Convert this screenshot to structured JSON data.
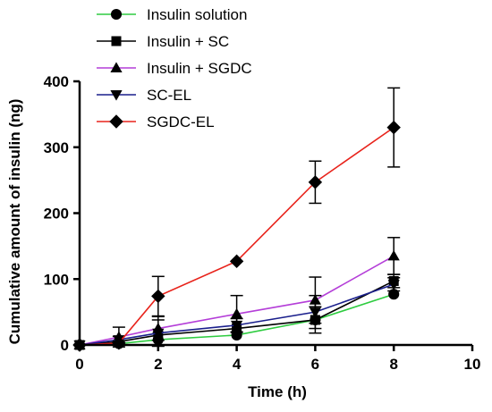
{
  "chart_data": {
    "type": "line",
    "title": "",
    "xlabel": "Time (h)",
    "ylabel": "Cumulative amount of insulin (ng)",
    "xlim": [
      0,
      10
    ],
    "ylim": [
      0,
      400
    ],
    "xticks": [
      0,
      2,
      4,
      6,
      8,
      10
    ],
    "yticks": [
      0,
      100,
      200,
      300,
      400
    ],
    "x": [
      0,
      1,
      2,
      4,
      6,
      8
    ],
    "grid": false,
    "legend_position": "top-left",
    "series": [
      {
        "name": "Insulin solution",
        "marker": "circle",
        "color": "#2ecc40",
        "values": [
          0,
          2,
          8,
          15,
          38,
          77
        ],
        "errors": [
          0,
          0,
          0,
          0,
          0,
          0
        ]
      },
      {
        "name": "Insulin + SC",
        "marker": "square",
        "color": "#000000",
        "values": [
          0,
          5,
          15,
          25,
          38,
          97
        ],
        "errors": [
          0,
          0,
          0,
          0,
          20,
          10
        ]
      },
      {
        "name": "Insulin + SGDC",
        "marker": "triangle-up",
        "color": "#b43ed8",
        "values": [
          0,
          12,
          25,
          47,
          68,
          135
        ],
        "errors": [
          0,
          15,
          18,
          28,
          35,
          28
        ]
      },
      {
        "name": "SC-EL",
        "marker": "triangle-down",
        "color": "#1a1f8c",
        "values": [
          0,
          8,
          18,
          30,
          50,
          92
        ],
        "errors": [
          0,
          5,
          20,
          10,
          25,
          10
        ]
      },
      {
        "name": "SGDC-EL",
        "marker": "diamond",
        "color": "#e8231b",
        "values": [
          0,
          3,
          74,
          127,
          247,
          330
        ],
        "errors": [
          0,
          3,
          30,
          0,
          32,
          60
        ]
      }
    ]
  }
}
